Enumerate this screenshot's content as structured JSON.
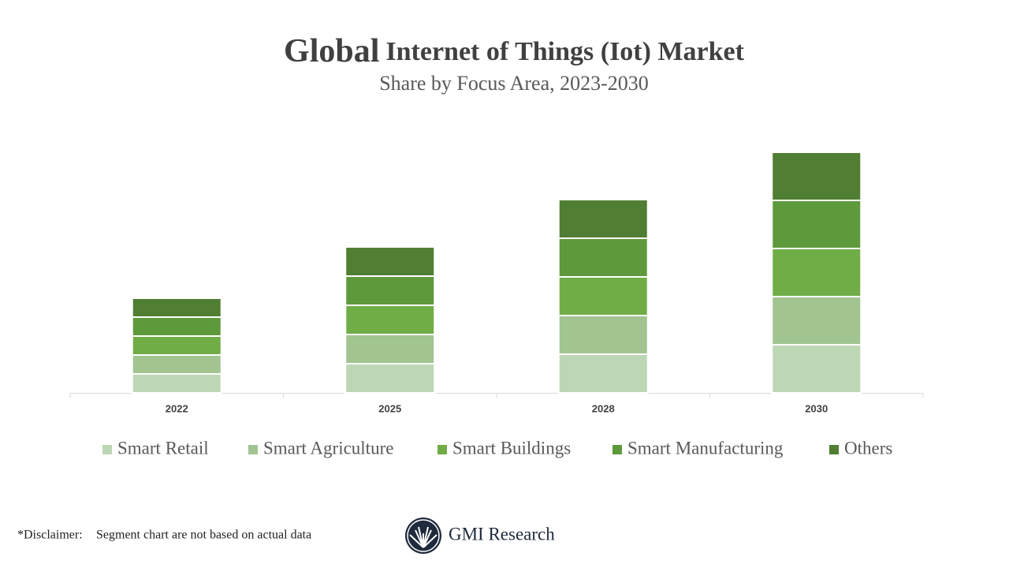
{
  "chart_data": {
    "type": "stacked_bar",
    "title_lead": "Global",
    "title": "Internet of Things (Iot) Market",
    "subtitle": "Share by Focus Area, 2023-2030",
    "categories": [
      "2022",
      "2025",
      "2028",
      "2030"
    ],
    "series": [
      {
        "name": "Smart Retail",
        "color": "#bdd7b5",
        "values": [
          24,
          37,
          49,
          61
        ]
      },
      {
        "name": "Smart Agriculture",
        "color": "#a1c490",
        "values": [
          24,
          37,
          49,
          61
        ]
      },
      {
        "name": "Smart Buildings",
        "color": "#70ad47",
        "values": [
          24,
          37,
          49,
          61
        ]
      },
      {
        "name": "Smart Manufacturing",
        "color": "#5e9a3c",
        "values": [
          24,
          37,
          49,
          61
        ]
      },
      {
        "name": "Others",
        "color": "#507e32",
        "values": [
          24,
          37,
          49,
          61
        ]
      }
    ]
  },
  "footer": {
    "disclaimer_label": "*Disclaimer:",
    "disclaimer": "Segment chart are not based on actual data",
    "brand": "GMI Research"
  }
}
